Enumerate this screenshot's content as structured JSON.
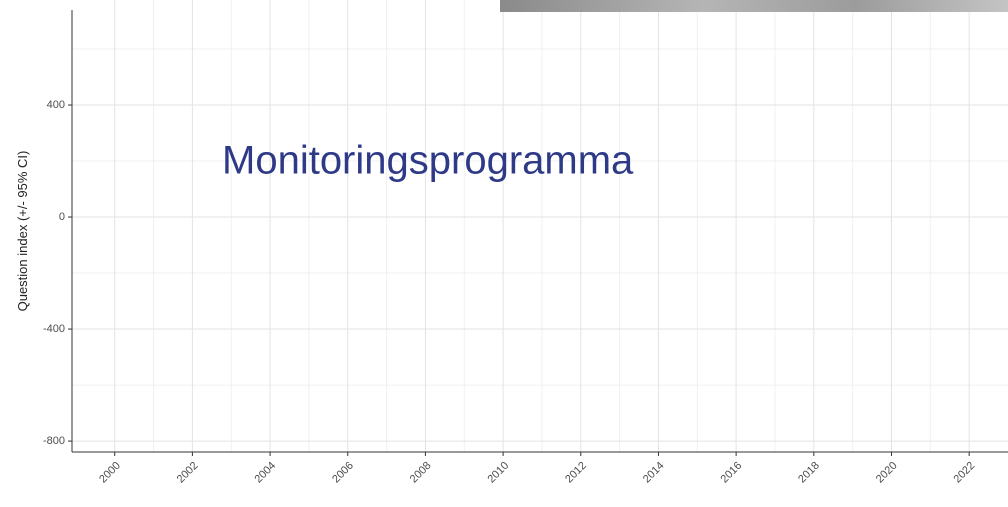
{
  "chart_data": {
    "type": "line",
    "annotation": "Monitoringsprogramma",
    "y_label": "Question index (+/- 95% CI)",
    "series": [],
    "xlim": [
      1998.9,
      2023
    ],
    "xticks": [
      2000,
      2002,
      2004,
      2006,
      2008,
      2010,
      2012,
      2014,
      2016,
      2018,
      2020,
      2022
    ],
    "ylim": [
      -839,
      775
    ],
    "yticks": [
      -800,
      -400,
      0,
      400
    ],
    "grid": true,
    "minor_grid": true
  }
}
